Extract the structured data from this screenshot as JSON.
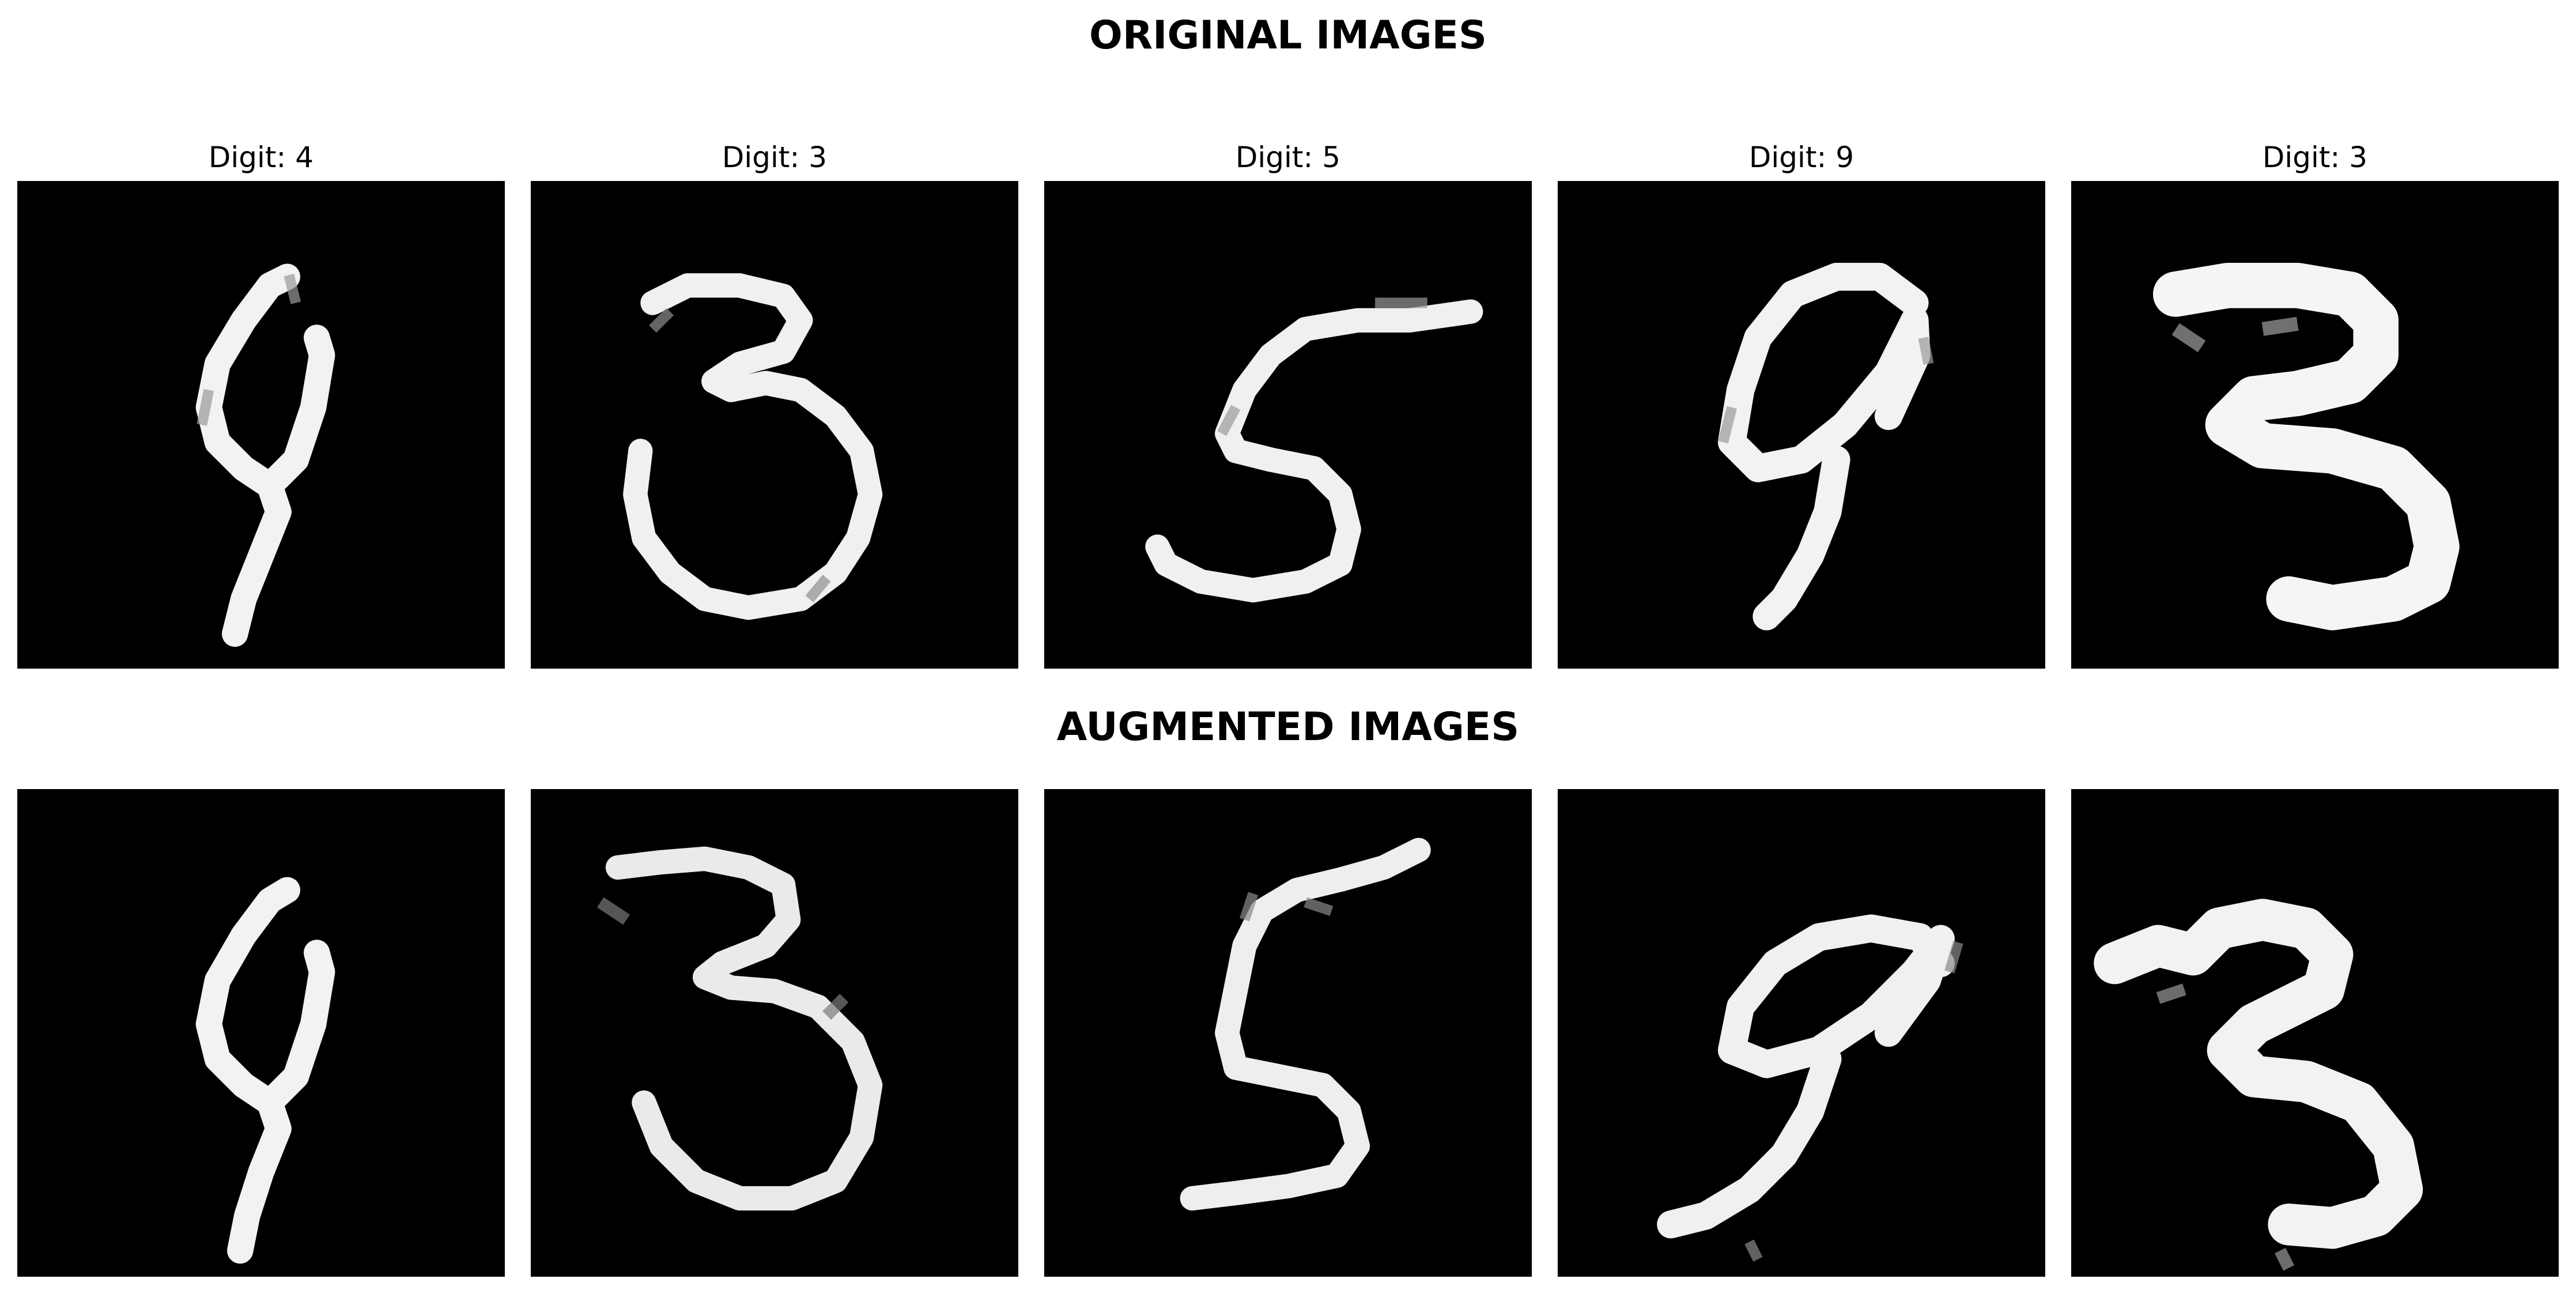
{
  "figure": {
    "original_title": "ORIGINAL IMAGES",
    "augmented_title": "AUGMENTED IMAGES"
  },
  "original_samples": [
    {
      "label": "Digit: 4",
      "digit": "4"
    },
    {
      "label": "Digit: 3",
      "digit": "3"
    },
    {
      "label": "Digit: 5",
      "digit": "5"
    },
    {
      "label": "Digit: 9",
      "digit": "9"
    },
    {
      "label": "Digit: 3",
      "digit": "3"
    }
  ],
  "augmented_samples": [
    {
      "digit": "4"
    },
    {
      "digit": "3"
    },
    {
      "digit": "5"
    },
    {
      "digit": "9"
    },
    {
      "digit": "3"
    }
  ],
  "colors": {
    "background": "#ffffff",
    "image_background": "#000000",
    "stroke": "#ffffff"
  }
}
